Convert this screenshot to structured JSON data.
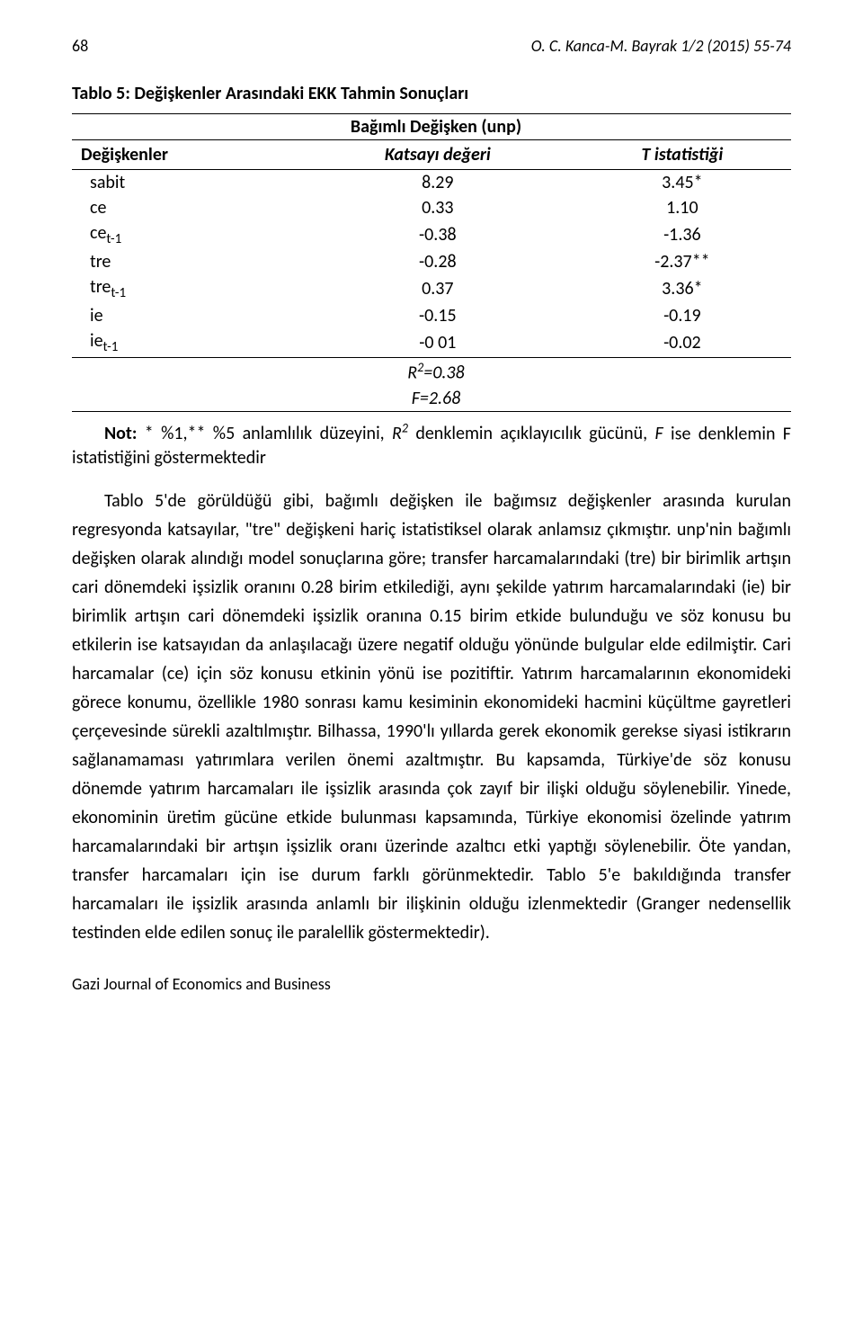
{
  "header": {
    "page_number": "68",
    "author_citation": "O. C. Kanca-M. Bayrak 1/2 (2015) 55-74"
  },
  "table": {
    "title": "Tablo 5: Değişkenler Arasındaki EKK Tahmin Sonuçları",
    "dependent_var_label": "Bağımlı Değişken (unp)",
    "columns": [
      "Değişkenler",
      "Katsayı değeri",
      "T istatistiği"
    ],
    "rows": [
      {
        "var_base": "sabit",
        "var_sub": "",
        "coef": "8.29",
        "tstat": "3.45*"
      },
      {
        "var_base": "ce",
        "var_sub": "",
        "coef": "0.33",
        "tstat": "1.10"
      },
      {
        "var_base": "ce",
        "var_sub": "t-1",
        "coef": "-0.38",
        "tstat": "-1.36"
      },
      {
        "var_base": "tre",
        "var_sub": "",
        "coef": "-0.28",
        "tstat": "-2.37**"
      },
      {
        "var_base": "tre",
        "var_sub": "t-1",
        "coef": "0.37",
        "tstat": "3.36*"
      },
      {
        "var_base": "ie",
        "var_sub": "",
        "coef": "-0.15",
        "tstat": "-0.19"
      },
      {
        "var_base": "ie",
        "var_sub": "t-1",
        "coef": "-0 01",
        "tstat": "-0.02"
      }
    ],
    "r2_label": "R",
    "r2_sup": "2",
    "r2_value": "=0.38",
    "f_label": "F=2.68"
  },
  "note": {
    "prefix": "Not: ",
    "text_before_r": "* %1,** %5 anlamlılık düzeyini, ",
    "r_letter": "R",
    "r_sup": "2",
    "text_after_r": " denklemin açıklayıcılık gücünü, ",
    "f_letter": "F",
    "text_after_f": " ise denklemin F istatistiğini göstermektedir"
  },
  "body": "Tablo 5'de görüldüğü gibi, bağımlı değişken ile bağımsız değişkenler arasında kurulan regresyonda katsayılar, \"tre\" değişkeni hariç istatistiksel olarak anlamsız çıkmıştır. unp'nin bağımlı değişken olarak alındığı model sonuçlarına göre; transfer harcamalarındaki (tre) bir birimlik artışın cari dönemdeki işsizlik oranını 0.28 birim etkilediği, aynı şekilde yatırım harcamalarındaki (ie) bir birimlik artışın cari dönemdeki işsizlik oranına 0.15 birim etkide bulunduğu ve söz konusu bu etkilerin ise katsayıdan da anlaşılacağı üzere negatif olduğu yönünde bulgular elde edilmiştir. Cari harcamalar (ce) için söz konusu etkinin yönü ise pozitiftir. Yatırım harcamalarının ekonomideki görece konumu, özellikle 1980 sonrası kamu kesiminin ekonomideki hacmini küçültme gayretleri çerçevesinde sürekli azaltılmıştır. Bilhassa, 1990'lı yıllarda gerek ekonomik gerekse siyasi istikrarın sağlanamaması yatırımlara verilen önemi azaltmıştır. Bu kapsamda, Türkiye'de söz konusu dönemde yatırım harcamaları ile işsizlik arasında çok zayıf bir ilişki olduğu söylenebilir. Yinede, ekonominin üretim gücüne etkide bulunması kapsamında, Türkiye ekonomisi özelinde yatırım harcamalarındaki bir artışın işsizlik oranı üzerinde azaltıcı etki yaptığı söylenebilir. Öte yandan, transfer harcamaları için ise durum farklı görünmektedir. Tablo 5'e bakıldığında transfer harcamaları ile işsizlik arasında anlamlı bir ilişkinin olduğu izlenmektedir (Granger nedensellik testinden elde edilen sonuç ile paralellik göstermektedir).",
  "footer": "Gazi Journal of Economics and Business"
}
